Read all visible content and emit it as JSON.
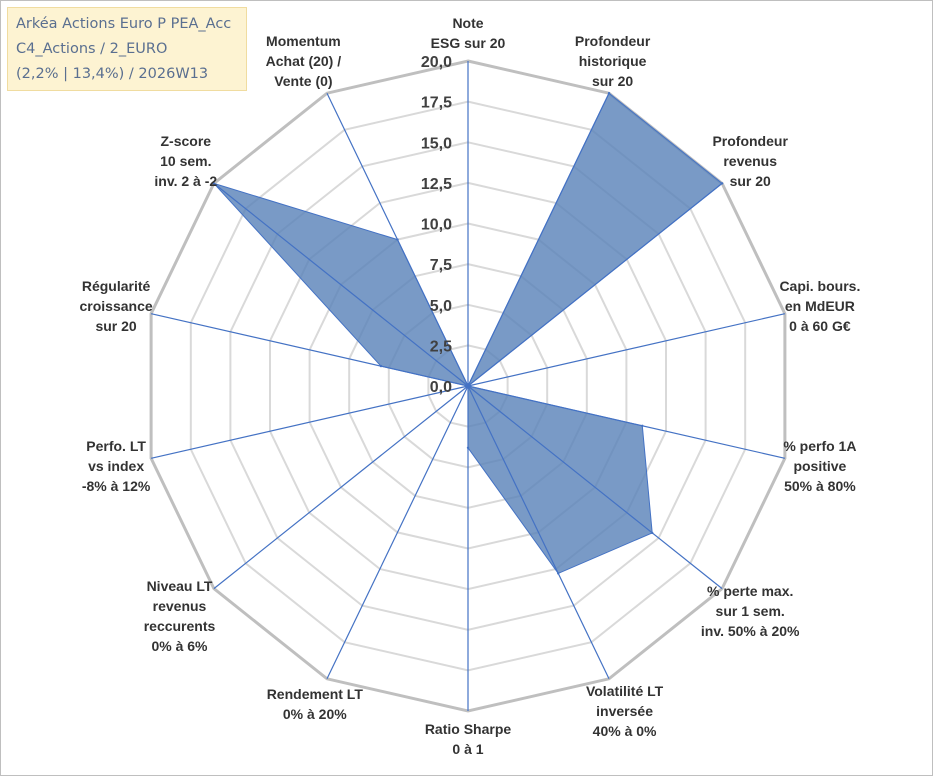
{
  "info_box": {
    "line1": "Arkéa Actions Euro P PEA_Acc",
    "line2": "C4_Actions / 2_EURO",
    "line3": "(2,2% | 13,4%) / 2026W13"
  },
  "colors": {
    "fill": "#5b84b9",
    "stroke": "#4472c4",
    "grid_outer": "#bfbfbf",
    "grid_inner": "#d9d9d9",
    "text": "#333333"
  },
  "chart_data": {
    "type": "radar",
    "title": "",
    "rmin": 0,
    "rmax": 20,
    "ticks": [
      "0,0",
      "2,5",
      "5,0",
      "7,5",
      "10,0",
      "12,5",
      "15,0",
      "17,5",
      "20,0"
    ],
    "categories": [
      [
        "Note",
        "ESG sur 20"
      ],
      [
        "Profondeur",
        "historique",
        "sur 20"
      ],
      [
        "Profondeur",
        "revenus",
        "sur 20"
      ],
      [
        "Capi. bours.",
        "en MdEUR",
        "0 à 60 G€"
      ],
      [
        "% perfo 1A",
        "positive",
        "50% à 80%"
      ],
      [
        "% perte max.",
        "sur 1 sem.",
        "inv. 50% à 20%"
      ],
      [
        "Volatilité LT",
        "inversée",
        "40% à 0%"
      ],
      [
        "Ratio Sharpe",
        "0 à 1"
      ],
      [
        "Rendement LT",
        "0% à 20%"
      ],
      [
        "Niveau LT",
        "revenus",
        "reccurents",
        "0% à 6%"
      ],
      [
        "Perfo. LT",
        "vs index",
        "-8% à 12%"
      ],
      [
        "Régularité",
        "croissance",
        "sur 20"
      ],
      [
        "Z-score",
        "10 sem.",
        "inv. 2 à -2"
      ],
      [
        "Momentum",
        "Achat (20) /",
        "Vente (0)"
      ]
    ],
    "series": [
      {
        "values": [
          0,
          20,
          20,
          0,
          11,
          14.5,
          12.8,
          3.8,
          0,
          0,
          0,
          5.5,
          20,
          10
        ]
      }
    ]
  }
}
